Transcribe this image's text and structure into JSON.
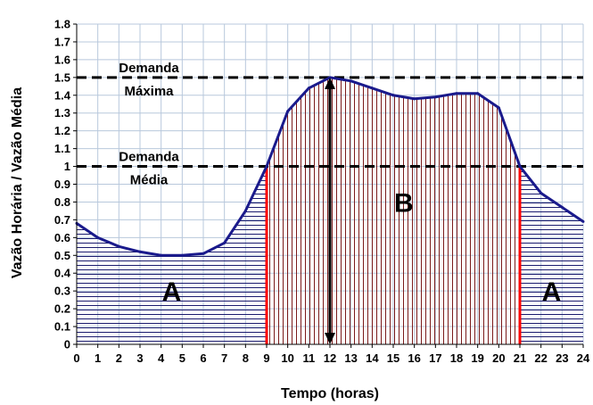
{
  "chart_data": {
    "type": "line",
    "title": "",
    "xlabel": "Tempo (horas)",
    "ylabel": "Vazão Horária / Vazão Média",
    "xlim": [
      0,
      24
    ],
    "ylim": [
      0,
      1.8
    ],
    "x_ticks": [
      "0",
      "1",
      "2",
      "3",
      "4",
      "5",
      "6",
      "7",
      "8",
      "9",
      "10",
      "11",
      "12",
      "13",
      "14",
      "15",
      "16",
      "17",
      "18",
      "19",
      "20",
      "21",
      "22",
      "23",
      "24"
    ],
    "y_ticks": [
      "0",
      "0.1",
      "0.2",
      "0.3",
      "0.4",
      "0.5",
      "0.6",
      "0.7",
      "0.8",
      "0.9",
      "1",
      "1.1",
      "1.2",
      "1.3",
      "1.4",
      "1.5",
      "1.6",
      "1.7",
      "1.8"
    ],
    "grid": true,
    "series": [
      {
        "x": [
          0,
          1,
          2,
          3,
          4,
          5,
          6,
          7,
          8,
          9,
          10,
          11,
          12,
          13,
          14,
          15,
          16,
          17,
          18,
          19,
          20,
          21,
          22,
          23,
          24
        ],
        "y": [
          0.68,
          0.6,
          0.55,
          0.52,
          0.5,
          0.5,
          0.51,
          0.57,
          0.75,
          1.0,
          1.31,
          1.44,
          1.5,
          1.48,
          1.44,
          1.4,
          1.38,
          1.39,
          1.41,
          1.41,
          1.33,
          1.0,
          0.85,
          0.77,
          0.69
        ],
        "color": "#1a1a8c"
      }
    ],
    "reference_lines": [
      {
        "y": 1.5,
        "label_line1": "Demanda",
        "label_line2": "Máxima",
        "style": "dashed"
      },
      {
        "y": 1.0,
        "label_line1": "Demanda",
        "label_line2": "Média",
        "style": "dashed"
      }
    ],
    "vertical_markers": [
      {
        "x": 9,
        "color": "#ff0000"
      },
      {
        "x": 21,
        "color": "#ff0000"
      }
    ],
    "arrow": {
      "x": 12,
      "from_y": 0,
      "to_y": 1.5
    },
    "regions": [
      {
        "label": "A",
        "x_from": 0,
        "x_to": 9,
        "hatch": "horizontal",
        "hatch_color": "#1a1a6e",
        "label_x": 4.5,
        "label_y": 0.3
      },
      {
        "label": "B",
        "x_from": 9,
        "x_to": 21,
        "hatch": "vertical",
        "hatch_color": "#7a1a1a",
        "label_x": 15.5,
        "label_y": 0.8
      },
      {
        "label": "A",
        "x_from": 21,
        "x_to": 24,
        "hatch": "horizontal",
        "hatch_color": "#1a1a6e",
        "label_x": 22.5,
        "label_y": 0.3
      }
    ],
    "colors": {
      "grid": "#b8c8dc",
      "axis": "#000000",
      "reference": "#000000"
    }
  }
}
